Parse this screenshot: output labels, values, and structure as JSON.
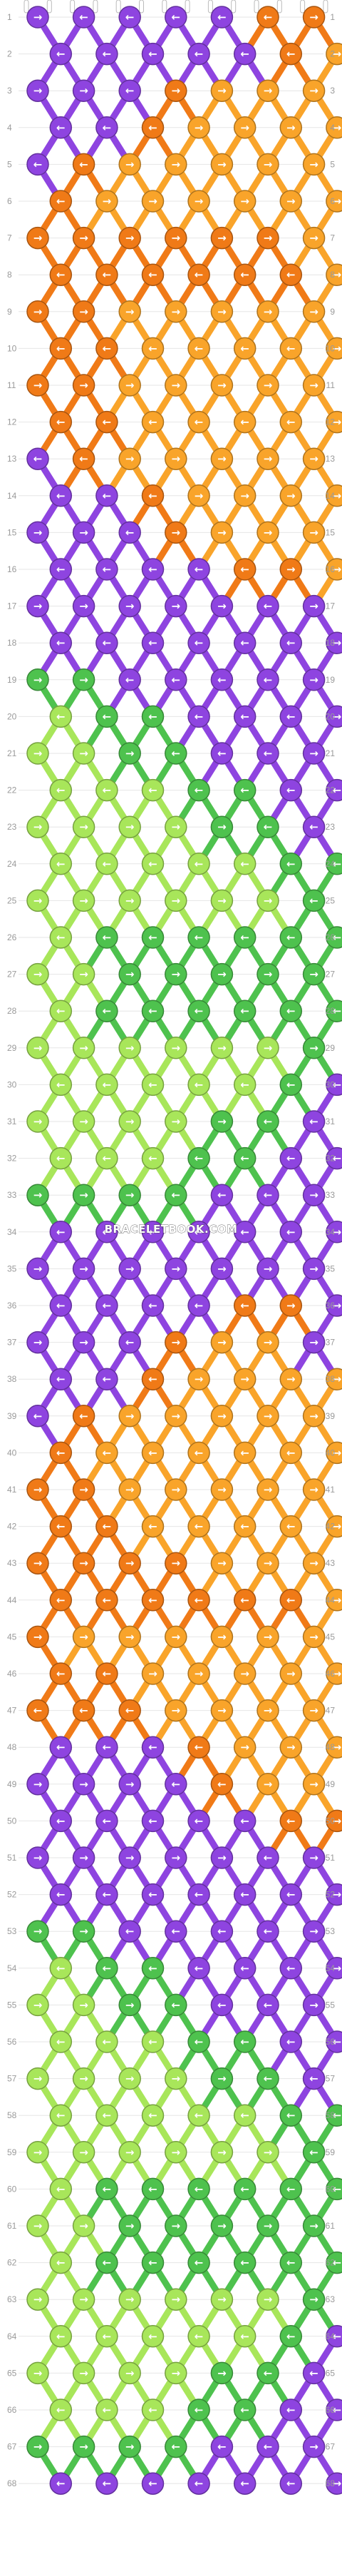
{
  "watermark": "BRACELETBOOK.COM",
  "colors": {
    "A": "#8e44e0",
    "B": "#f07a17",
    "C": "#f9a42a",
    "D": "#4ec24e",
    "E": "#a8e65a"
  },
  "strings": {
    "count": 14,
    "start_order": [
      "A",
      "A",
      "C",
      "A",
      "A",
      "A",
      "A",
      "A",
      "A",
      "A",
      "A",
      "A",
      "A",
      "A"
    ]
  },
  "row_labels": [
    "1",
    "2",
    "3",
    "4",
    "5",
    "6",
    "7",
    "8",
    "9",
    "10",
    "11",
    "12",
    "13",
    "14",
    "15",
    "16",
    "17",
    "18",
    "19",
    "20",
    "21",
    "22",
    "23",
    "24",
    "25",
    "26",
    "27",
    "28",
    "29",
    "30",
    "31",
    "32",
    "33",
    "34",
    "35",
    "36",
    "37",
    "38",
    "39",
    "40",
    "41",
    "42",
    "43",
    "44",
    "45",
    "46",
    "47",
    "48",
    "49",
    "50",
    "51",
    "52",
    "53",
    "54",
    "55",
    "56",
    "57",
    "58",
    "59",
    "60",
    "61",
    "62",
    "63",
    "64",
    "65",
    "66",
    "67",
    "68"
  ],
  "knots": [
    [
      "A>",
      "A<",
      "A<",
      "A<",
      "A<",
      "B<",
      "B>"
    ],
    [
      "A<",
      "A<",
      "A<",
      "A<",
      "A<",
      "B<",
      "C>"
    ],
    [
      "A>",
      "A>",
      "A<",
      "B>",
      "C>",
      "C>",
      "C>"
    ],
    [
      "A<",
      "A<",
      "B<",
      "C>",
      "C>",
      "C>",
      "C>"
    ],
    [
      "A<",
      "B<",
      "C>",
      "C>",
      "C>",
      "C>",
      "C>"
    ],
    [
      "B<",
      "C>",
      "C>",
      "C>",
      "C>",
      "C>",
      "C>"
    ],
    [
      "B>",
      "B>",
      "B>",
      "B>",
      "B>",
      "B>",
      "C>"
    ],
    [
      "B<",
      "B<",
      "B<",
      "B<",
      "B<",
      "B<",
      "C>"
    ],
    [
      "B>",
      "B>",
      "C>",
      "C>",
      "C>",
      "C>",
      "C>"
    ],
    [
      "B<",
      "B<",
      "C<",
      "C<",
      "C<",
      "C<",
      "C>"
    ],
    [
      "B>",
      "B>",
      "C>",
      "C>",
      "C>",
      "C>",
      "C>"
    ],
    [
      "B<",
      "B<",
      "C<",
      "C<",
      "C<",
      "C<",
      "C>"
    ],
    [
      "A<",
      "B<",
      "C>",
      "C>",
      "C>",
      "C>",
      "C>"
    ],
    [
      "A<",
      "A<",
      "B<",
      "C>",
      "C>",
      "C>",
      "C>"
    ],
    [
      "A>",
      "A>",
      "A<",
      "B>",
      "C>",
      "C>",
      "C>"
    ],
    [
      "A<",
      "A<",
      "A<",
      "A<",
      "B<",
      "B>",
      "C>"
    ],
    [
      "A>",
      "A>",
      "A>",
      "A>",
      "A>",
      "A<",
      "A>"
    ],
    [
      "A<",
      "A<",
      "A<",
      "A<",
      "A<",
      "A<",
      "A>"
    ],
    [
      "D>",
      "D>",
      "A<",
      "A<",
      "A<",
      "A<",
      "A>"
    ],
    [
      "E<",
      "D<",
      "D<",
      "A<",
      "A<",
      "A<",
      "A>"
    ],
    [
      "E>",
      "E>",
      "D>",
      "D<",
      "A<",
      "A<",
      "A>"
    ],
    [
      "E<",
      "E<",
      "E<",
      "D<",
      "D<",
      "A<",
      "A<"
    ],
    [
      "E>",
      "E>",
      "E>",
      "E>",
      "D>",
      "D<",
      "A<"
    ],
    [
      "E<",
      "E<",
      "E<",
      "E<",
      "E<",
      "D<",
      "D<"
    ],
    [
      "E>",
      "E>",
      "E>",
      "E>",
      "E>",
      "E>",
      "D<"
    ],
    [
      "E<",
      "D<",
      "D<",
      "D<",
      "D<",
      "D<",
      "D<"
    ],
    [
      "E>",
      "E>",
      "D>",
      "D>",
      "D>",
      "D>",
      "D>"
    ],
    [
      "E<",
      "D<",
      "D<",
      "D<",
      "D<",
      "D<",
      "D<"
    ],
    [
      "E>",
      "E>",
      "E>",
      "E>",
      "E>",
      "E>",
      "D>"
    ],
    [
      "E<",
      "E<",
      "E<",
      "E<",
      "E<",
      "D<",
      "A<"
    ],
    [
      "E>",
      "E>",
      "E>",
      "E>",
      "D>",
      "D<",
      "A<"
    ],
    [
      "E<",
      "E<",
      "E<",
      "D<",
      "D<",
      "A<",
      "A<"
    ],
    [
      "D>",
      "D>",
      "D>",
      "D<",
      "A<",
      "A<",
      "A>"
    ],
    [
      "A<",
      "A<",
      "A<",
      "A<",
      "A<",
      "A<",
      "A>"
    ],
    [
      "A>",
      "A>",
      "A>",
      "A>",
      "A>",
      "A>",
      "A>"
    ],
    [
      "A<",
      "A<",
      "A<",
      "A<",
      "B<",
      "B>",
      "A>"
    ],
    [
      "A>",
      "A>",
      "A<",
      "B>",
      "C>",
      "C>",
      "A>"
    ],
    [
      "A<",
      "A<",
      "B<",
      "C>",
      "C>",
      "C>",
      "C>"
    ],
    [
      "A<",
      "B<",
      "C>",
      "C>",
      "C>",
      "C>",
      "C>"
    ],
    [
      "B<",
      "C<",
      "C<",
      "C<",
      "C<",
      "C<",
      "C>"
    ],
    [
      "B>",
      "B>",
      "C>",
      "C>",
      "C>",
      "C>",
      "C>"
    ],
    [
      "B<",
      "B<",
      "C<",
      "C<",
      "C<",
      "C<",
      "C>"
    ],
    [
      "B>",
      "B>",
      "B>",
      "B>",
      "C>",
      "C>",
      "C>"
    ],
    [
      "B<",
      "B<",
      "B<",
      "B<",
      "B<",
      "B<",
      "C>"
    ],
    [
      "B>",
      "C>",
      "C>",
      "C>",
      "C>",
      "C>",
      "C>"
    ],
    [
      "B<",
      "B<",
      "C>",
      "C>",
      "C>",
      "C>",
      "C>"
    ],
    [
      "B<",
      "B<",
      "B<",
      "C>",
      "C>",
      "C>",
      "C>"
    ],
    [
      "A<",
      "A<",
      "A<",
      "B<",
      "C>",
      "C>",
      "C>"
    ],
    [
      "A>",
      "A>",
      "A>",
      "A<",
      "B<",
      "C>",
      "C>"
    ],
    [
      "A<",
      "A<",
      "A<",
      "A<",
      "A<",
      "B<",
      "B>"
    ],
    [
      "A>",
      "A>",
      "A>",
      "A>",
      "A>",
      "A<",
      "A>"
    ],
    [
      "A<",
      "A<",
      "A<",
      "A<",
      "A<",
      "A<",
      "A>"
    ],
    [
      "D>",
      "D>",
      "A<",
      "A<",
      "A<",
      "A<",
      "A>"
    ],
    [
      "E<",
      "D<",
      "D<",
      "A<",
      "A<",
      "A<",
      "A>"
    ],
    [
      "E>",
      "E>",
      "D>",
      "D<",
      "A<",
      "A<",
      "A>"
    ],
    [
      "E<",
      "E<",
      "E<",
      "D<",
      "D<",
      "A<",
      "A<"
    ],
    [
      "E>",
      "E>",
      "E>",
      "E>",
      "D>",
      "D<",
      "A<"
    ],
    [
      "E<",
      "E<",
      "E<",
      "E<",
      "E<",
      "D<",
      "D<"
    ],
    [
      "E>",
      "E>",
      "E>",
      "E>",
      "E>",
      "E>",
      "D<"
    ],
    [
      "E<",
      "D<",
      "D<",
      "D<",
      "D<",
      "D<",
      "D<"
    ],
    [
      "E>",
      "E>",
      "D>",
      "D>",
      "D>",
      "D>",
      "D>"
    ],
    [
      "E<",
      "D<",
      "D<",
      "D<",
      "D<",
      "D<",
      "D<"
    ],
    [
      "E>",
      "E>",
      "E>",
      "E>",
      "E>",
      "E>",
      "D>"
    ],
    [
      "E<",
      "E<",
      "E<",
      "E<",
      "E<",
      "D<",
      "A<"
    ],
    [
      "E>",
      "E>",
      "E>",
      "E>",
      "D>",
      "D<",
      "A<"
    ],
    [
      "E<",
      "E<",
      "E<",
      "D<",
      "D<",
      "A<",
      "A<"
    ],
    [
      "D>",
      "D>",
      "D>",
      "D<",
      "A<",
      "A<",
      "A>"
    ],
    [
      "A<",
      "A<",
      "A<",
      "A<",
      "A<",
      "A<",
      "A>"
    ]
  ]
}
